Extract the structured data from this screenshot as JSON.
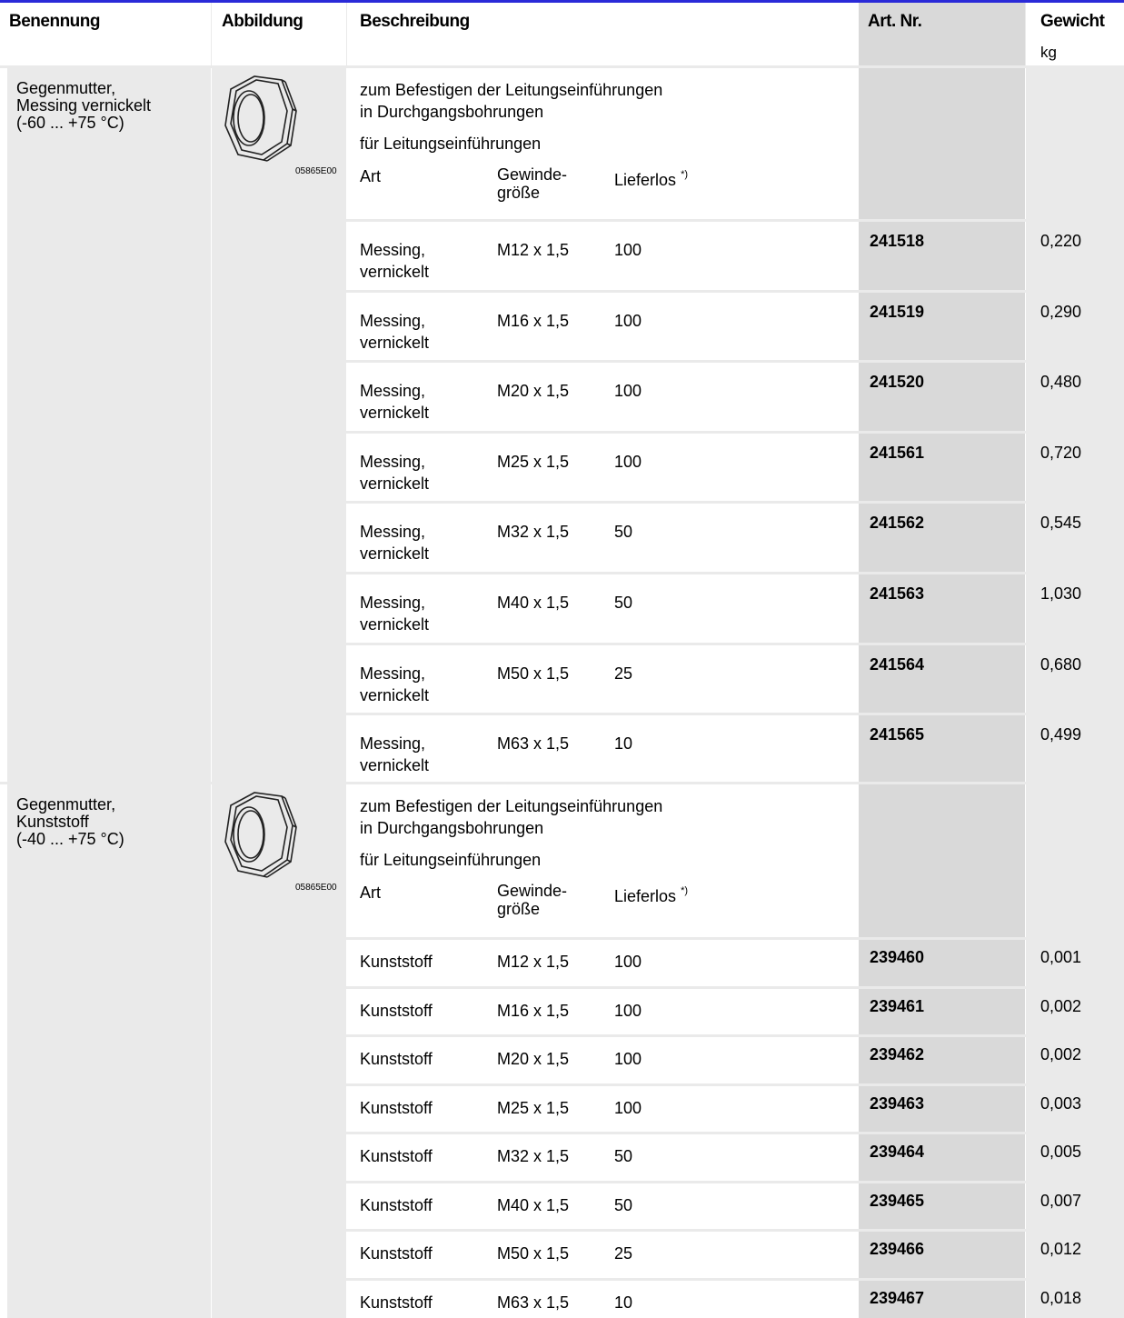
{
  "header": {
    "col_name": "Benennung",
    "col_image": "Abbildung",
    "col_desc": "Beschreibung",
    "col_artnr": "Art. Nr.",
    "col_weight": "Gewicht",
    "col_weight_unit": "kg"
  },
  "sections": [
    {
      "name_line1": "Gegenmutter,",
      "name_line2": "Messing vernickelt",
      "name_line3": "(-60 ... +75 °C)",
      "image_code": "05865E00",
      "desc_line1": "zum Befestigen der Leitungseinführungen",
      "desc_line2": "in Durchgangsbohrungen",
      "desc_line3": "für Leitungseinführungen",
      "sub_art": "Art",
      "sub_gewinde1": "Gewinde-",
      "sub_gewinde2": "größe",
      "sub_lieferlos": "Lieferlos",
      "sub_footnote": "*)",
      "rows": [
        {
          "art1": "Messing,",
          "art2": "vernickelt",
          "gewinde": "M12 x 1,5",
          "lieferlos": "100",
          "artnr": "241518",
          "kg": "0,220"
        },
        {
          "art1": "Messing,",
          "art2": "vernickelt",
          "gewinde": "M16 x 1,5",
          "lieferlos": "100",
          "artnr": "241519",
          "kg": "0,290"
        },
        {
          "art1": "Messing,",
          "art2": "vernickelt",
          "gewinde": "M20 x 1,5",
          "lieferlos": "100",
          "artnr": "241520",
          "kg": "0,480"
        },
        {
          "art1": "Messing,",
          "art2": "vernickelt",
          "gewinde": "M25 x 1,5",
          "lieferlos": "100",
          "artnr": "241561",
          "kg": "0,720"
        },
        {
          "art1": "Messing,",
          "art2": "vernickelt",
          "gewinde": "M32 x 1,5",
          "lieferlos": "50",
          "artnr": "241562",
          "kg": "0,545"
        },
        {
          "art1": "Messing,",
          "art2": "vernickelt",
          "gewinde": "M40 x 1,5",
          "lieferlos": "50",
          "artnr": "241563",
          "kg": "1,030"
        },
        {
          "art1": "Messing,",
          "art2": "vernickelt",
          "gewinde": "M50 x 1,5",
          "lieferlos": "25",
          "artnr": "241564",
          "kg": "0,680"
        },
        {
          "art1": "Messing,",
          "art2": "vernickelt",
          "gewinde": "M63 x 1,5",
          "lieferlos": "10",
          "artnr": "241565",
          "kg": "0,499"
        }
      ]
    },
    {
      "name_line1": "Gegenmutter,",
      "name_line2": "Kunststoff",
      "name_line3": "(-40 ... +75 °C)",
      "image_code": "05865E00",
      "desc_line1": "zum Befestigen der Leitungseinführungen",
      "desc_line2": "in Durchgangsbohrungen",
      "desc_line3": "für Leitungseinführungen",
      "sub_art": "Art",
      "sub_gewinde1": "Gewinde-",
      "sub_gewinde2": "größe",
      "sub_lieferlos": "Lieferlos",
      "sub_footnote": "*)",
      "rows": [
        {
          "art1": "Kunststoff",
          "gewinde": "M12 x 1,5",
          "lieferlos": "100",
          "artnr": "239460",
          "kg": "0,001"
        },
        {
          "art1": "Kunststoff",
          "gewinde": "M16 x 1,5",
          "lieferlos": "100",
          "artnr": "239461",
          "kg": "0,002"
        },
        {
          "art1": "Kunststoff",
          "gewinde": "M20 x 1,5",
          "lieferlos": "100",
          "artnr": "239462",
          "kg": "0,002"
        },
        {
          "art1": "Kunststoff",
          "gewinde": "M25 x 1,5",
          "lieferlos": "100",
          "artnr": "239463",
          "kg": "0,003"
        },
        {
          "art1": "Kunststoff",
          "gewinde": "M32 x 1,5",
          "lieferlos": "50",
          "artnr": "239464",
          "kg": "0,005"
        },
        {
          "art1": "Kunststoff",
          "gewinde": "M40 x 1,5",
          "lieferlos": "50",
          "artnr": "239465",
          "kg": "0,007"
        },
        {
          "art1": "Kunststoff",
          "gewinde": "M50 x 1,5",
          "lieferlos": "25",
          "artnr": "239466",
          "kg": "0,012"
        },
        {
          "art1": "Kunststoff",
          "gewinde": "M63 x 1,5",
          "lieferlos": "10",
          "artnr": "239467",
          "kg": "0,018"
        }
      ]
    }
  ]
}
